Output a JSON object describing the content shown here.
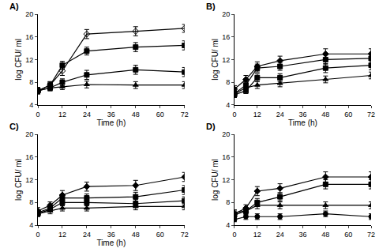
{
  "chart_data": [
    {
      "type": "line",
      "title": "A)",
      "x_label": "Time (h)",
      "y_label": "log CFU/ ml",
      "x": [
        0,
        6,
        12,
        24,
        48,
        72
      ],
      "xlim": [
        0,
        72
      ],
      "xticks": [
        0,
        12,
        24,
        36,
        48,
        60,
        72
      ],
      "ylim": [
        4,
        20
      ],
      "yticks": [
        4,
        8,
        12,
        16,
        20
      ],
      "series": [
        {
          "color": "#000000",
          "marker": "diamond-open",
          "values": [
            6.5,
            7.5,
            10,
            16.5,
            17,
            17.5
          ],
          "errors": [
            0.6,
            0.6,
            0.8,
            0.8,
            0.8,
            0.7
          ]
        },
        {
          "color": "#000000",
          "marker": "square",
          "values": [
            6.5,
            7.5,
            11,
            13.5,
            14.2,
            14.5
          ],
          "errors": [
            0.5,
            0.6,
            0.7,
            0.7,
            0.8,
            0.8
          ]
        },
        {
          "color": "#000000",
          "marker": "square",
          "values": [
            6.5,
            7,
            8,
            9.3,
            10.2,
            9.8
          ],
          "errors": [
            0.5,
            0.5,
            0.6,
            0.8,
            0.8,
            0.8
          ]
        },
        {
          "color": "#000000",
          "marker": "triangle-up",
          "values": [
            6.5,
            7,
            7.2,
            7.6,
            7.5,
            7.5
          ],
          "errors": [
            0.4,
            0.5,
            0.5,
            0.6,
            0.6,
            0.6
          ]
        }
      ]
    },
    {
      "type": "line",
      "title": "B)",
      "x_label": "Time (h)",
      "y_label": "log CFU/ ml",
      "x": [
        0,
        6,
        12,
        24,
        48,
        72
      ],
      "xlim": [
        0,
        72
      ],
      "xticks": [
        0,
        12,
        24,
        36,
        48,
        60,
        72
      ],
      "ylim": [
        4,
        20
      ],
      "yticks": [
        4,
        8,
        12,
        16,
        20
      ],
      "series": [
        {
          "color": "#000000",
          "marker": "diamond",
          "values": [
            6.8,
            8.5,
            10.8,
            11.8,
            13,
            13
          ],
          "errors": [
            0.6,
            0.7,
            0.8,
            0.8,
            0.9,
            0.9
          ]
        },
        {
          "color": "#000000",
          "marker": "square",
          "values": [
            6,
            7.5,
            10.5,
            10.8,
            12,
            12.2
          ],
          "errors": [
            0.5,
            0.6,
            0.7,
            0.7,
            0.8,
            0.8
          ]
        },
        {
          "color": "#000000",
          "marker": "square",
          "values": [
            5.8,
            6.5,
            8.8,
            8.8,
            10.5,
            11
          ],
          "errors": [
            0.5,
            0.5,
            0.7,
            0.7,
            0.8,
            0.8
          ]
        },
        {
          "color": "#000000",
          "marker": "triangle-up",
          "values": [
            6,
            7,
            7.5,
            7.8,
            8.5,
            9.2
          ],
          "errors": [
            0.5,
            0.5,
            0.6,
            0.6,
            0.6,
            0.6
          ]
        }
      ]
    },
    {
      "type": "line",
      "title": "C)",
      "x_label": "Time (h)",
      "y_label": "log CFU/ ml",
      "x": [
        0,
        6,
        12,
        24,
        48,
        72
      ],
      "xlim": [
        0,
        72
      ],
      "xticks": [
        0,
        12,
        24,
        36,
        48,
        60,
        72
      ],
      "ylim": [
        4,
        20
      ],
      "yticks": [
        4,
        8,
        12,
        16,
        20
      ],
      "series": [
        {
          "color": "#000000",
          "marker": "diamond",
          "values": [
            6.5,
            7.5,
            9.3,
            10.8,
            11,
            12.5
          ],
          "errors": [
            0.6,
            0.6,
            0.8,
            0.8,
            0.9,
            0.8
          ]
        },
        {
          "color": "#000000",
          "marker": "square",
          "values": [
            6.2,
            7,
            8.8,
            8.8,
            9,
            10.2
          ],
          "errors": [
            0.5,
            0.6,
            0.7,
            0.7,
            0.8,
            0.8
          ]
        },
        {
          "color": "#000000",
          "marker": "square",
          "values": [
            6,
            6.8,
            8,
            8,
            7.8,
            8.3
          ],
          "errors": [
            0.5,
            0.5,
            0.6,
            0.6,
            0.7,
            0.7
          ]
        },
        {
          "color": "#000000",
          "marker": "triangle-up",
          "values": [
            6,
            6.5,
            7,
            7,
            7.3,
            7.3
          ],
          "errors": [
            0.4,
            0.5,
            0.5,
            0.5,
            0.6,
            0.6
          ]
        }
      ]
    },
    {
      "type": "line",
      "title": "D)",
      "y_label": "log CFU/ ml",
      "x": [
        0,
        6,
        12,
        24,
        48,
        72
      ],
      "xlim": [
        0,
        72
      ],
      "xticks": [
        0,
        12,
        24,
        36,
        48,
        60,
        72
      ],
      "ylim": [
        4,
        20
      ],
      "yticks": [
        4,
        8,
        12,
        16,
        20
      ],
      "series": [
        {
          "color": "#000000",
          "marker": "diamond",
          "values": [
            6,
            7,
            10,
            10.5,
            12.5,
            12.5
          ],
          "errors": [
            0.5,
            0.6,
            0.8,
            0.8,
            0.9,
            0.9
          ]
        },
        {
          "color": "#000000",
          "marker": "square",
          "values": [
            5.8,
            6.5,
            8,
            9,
            11.2,
            11.2
          ],
          "errors": [
            0.5,
            0.6,
            0.7,
            0.7,
            0.8,
            0.8
          ]
        },
        {
          "color": "#000000",
          "marker": "triangle-up",
          "values": [
            6.2,
            6.5,
            7.5,
            7.5,
            7.5,
            7.5
          ],
          "errors": [
            0.5,
            0.5,
            0.6,
            0.6,
            0.6,
            0.6
          ]
        },
        {
          "color": "#000000",
          "marker": "circle",
          "values": [
            5,
            5.5,
            5.5,
            5.5,
            6,
            5.5
          ],
          "errors": [
            0.4,
            0.5,
            0.5,
            0.5,
            0.5,
            0.5
          ]
        }
      ]
    }
  ]
}
